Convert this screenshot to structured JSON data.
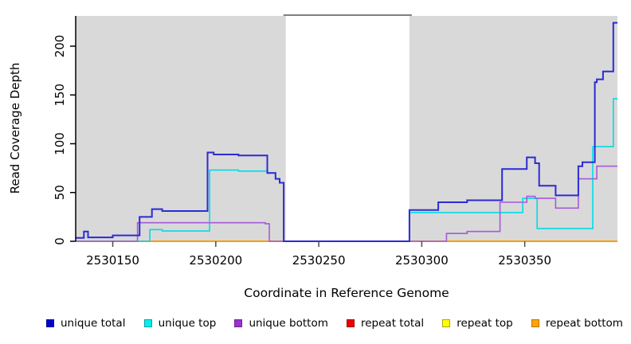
{
  "chart_data": {
    "type": "line",
    "subtype": "step-after",
    "title": "",
    "xlabel": "Coordinate in Reference Genome",
    "ylabel": "Read Coverage Depth",
    "xlim": [
      2530132,
      2530395
    ],
    "ylim": [
      0,
      231
    ],
    "x_ticks": [
      2530150,
      2530200,
      2530250,
      2530300,
      2530350
    ],
    "y_ticks": [
      0,
      50,
      100,
      150,
      200
    ],
    "grid": false,
    "plot_background": "#d9d9d9",
    "page_background": "#ffffff",
    "axis_color": "#000000",
    "tick_color": "#4d4d4d",
    "masked_region": {
      "x_start": 2530234,
      "x_end": 2530294,
      "fill": "#ffffff",
      "top_border_color": "#808080"
    },
    "legend_position": "bottom",
    "series": [
      {
        "name": "repeat top",
        "color": "#f0dc00",
        "width": 1.6,
        "points": [
          [
            2530132,
            0
          ]
        ]
      },
      {
        "name": "repeat total",
        "color": "#cc2222",
        "width": 1.6,
        "points": [
          [
            2530132,
            0
          ]
        ]
      },
      {
        "name": "repeat bottom",
        "color": "#ff9d00",
        "width": 2,
        "points": [
          [
            2530132,
            0
          ]
        ]
      },
      {
        "name": "unique top",
        "color": "#00dce6",
        "width": 1.6,
        "points": [
          [
            2530132,
            0
          ],
          [
            2530168,
            12
          ],
          [
            2530174,
            10.5
          ],
          [
            2530197,
            73
          ],
          [
            2530211,
            72
          ],
          [
            2530225,
            70
          ],
          [
            2530229,
            64
          ],
          [
            2530231,
            60
          ],
          [
            2530233,
            0
          ],
          [
            2530294,
            29.5
          ],
          [
            2530349,
            44
          ],
          [
            2530356,
            13
          ],
          [
            2530383,
            97
          ],
          [
            2530393,
            146
          ]
        ]
      },
      {
        "name": "unique bottom",
        "color": "#a55bd6",
        "width": 1.6,
        "points": [
          [
            2530132,
            0
          ],
          [
            2530162,
            19
          ],
          [
            2530224,
            18
          ],
          [
            2530226,
            0
          ],
          [
            2530312,
            8
          ],
          [
            2530322,
            10
          ],
          [
            2530338,
            40
          ],
          [
            2530351,
            46
          ],
          [
            2530355,
            44
          ],
          [
            2530365,
            34
          ],
          [
            2530376,
            64
          ],
          [
            2530385,
            77
          ]
        ]
      },
      {
        "name": "unique total",
        "color": "#2b2bd5",
        "width": 2,
        "points": [
          [
            2530132,
            3.5
          ],
          [
            2530136,
            10
          ],
          [
            2530138,
            4
          ],
          [
            2530150,
            6
          ],
          [
            2530163,
            25
          ],
          [
            2530169,
            33
          ],
          [
            2530174,
            31
          ],
          [
            2530196,
            91
          ],
          [
            2530199,
            89
          ],
          [
            2530211,
            88
          ],
          [
            2530225,
            70
          ],
          [
            2530229,
            64
          ],
          [
            2530231,
            60
          ],
          [
            2530233,
            0
          ],
          [
            2530294,
            32
          ],
          [
            2530308,
            40
          ],
          [
            2530322,
            42
          ],
          [
            2530339,
            74
          ],
          [
            2530351,
            86
          ],
          [
            2530355,
            80
          ],
          [
            2530357,
            57
          ],
          [
            2530365,
            47
          ],
          [
            2530376,
            77
          ],
          [
            2530378,
            81
          ],
          [
            2530384,
            163
          ],
          [
            2530385,
            166
          ],
          [
            2530388,
            174
          ],
          [
            2530393,
            224
          ]
        ]
      }
    ]
  },
  "legend": {
    "items": [
      {
        "label": "unique total",
        "fill": "#0000cc",
        "border": "#000099"
      },
      {
        "label": "unique top",
        "fill": "#00eeee",
        "border": "#00a0a8"
      },
      {
        "label": "unique bottom",
        "fill": "#9933cc",
        "border": "#6e2394"
      },
      {
        "label": "repeat total",
        "fill": "#ee0000",
        "border": "#990000"
      },
      {
        "label": "repeat top",
        "fill": "#ffff00",
        "border": "#b0a400"
      },
      {
        "label": "repeat bottom",
        "fill": "#ffa500",
        "border": "#b87400"
      }
    ]
  }
}
